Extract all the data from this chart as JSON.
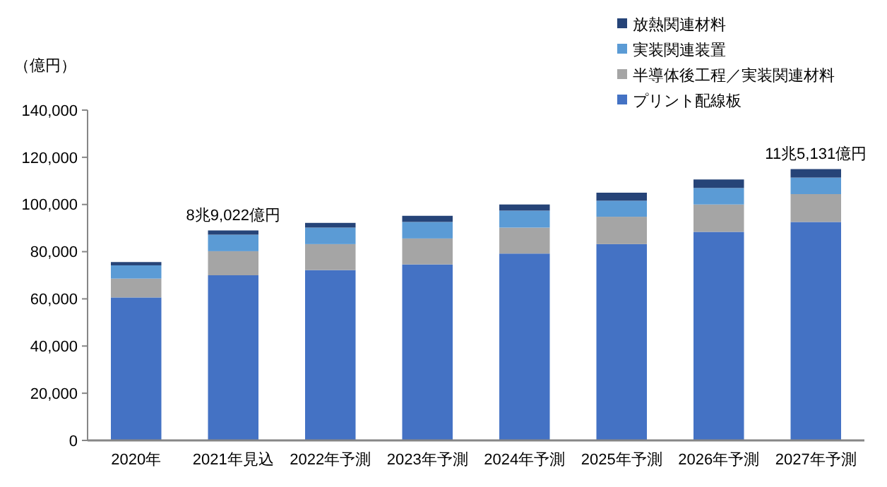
{
  "chart_data": {
    "type": "bar",
    "stacked": true,
    "ylabel": "（億円）",
    "categories": [
      "2020年",
      "2021年見込",
      "2022年予測",
      "2023年予測",
      "2024年予測",
      "2025年予測",
      "2026年予測",
      "2027年予測"
    ],
    "series": [
      {
        "name": "プリント配線板",
        "color": "#4472c4",
        "values": [
          60600,
          70000,
          72200,
          74600,
          79200,
          83200,
          88400,
          92600
        ]
      },
      {
        "name": "半導体後工程／実装関連材料",
        "color": "#a5a5a5",
        "values": [
          8000,
          10200,
          11000,
          11000,
          11000,
          11600,
          11600,
          11800
        ]
      },
      {
        "name": "実装関連装置",
        "color": "#5b9bd5",
        "values": [
          5600,
          7000,
          7000,
          7000,
          7200,
          6800,
          7000,
          7000
        ]
      },
      {
        "name": "放熱関連材料",
        "color": "#264478",
        "values": [
          1400,
          1800,
          2000,
          2600,
          2600,
          3400,
          3600,
          3600
        ]
      }
    ],
    "ylim": [
      0,
      140000
    ],
    "yticks": [
      0,
      {
        "value": 20000,
        "label": "20,000"
      },
      {
        "value": 40000,
        "label": "40,000"
      },
      {
        "value": 60000,
        "label": "60,000"
      },
      {
        "value": 80000,
        "label": "80,000"
      },
      {
        "value": 100000,
        "label": "100,000"
      },
      {
        "value": 120000,
        "label": "120,000"
      },
      {
        "value": 140000,
        "label": "140,000"
      }
    ],
    "annotations": [
      {
        "text": "8兆9,022億円",
        "x": "2021年見込",
        "y": 89022
      },
      {
        "text": "11兆5,131億円",
        "x": "2027年予測",
        "y": 115131
      }
    ],
    "legend": "top right",
    "grid": false
  }
}
